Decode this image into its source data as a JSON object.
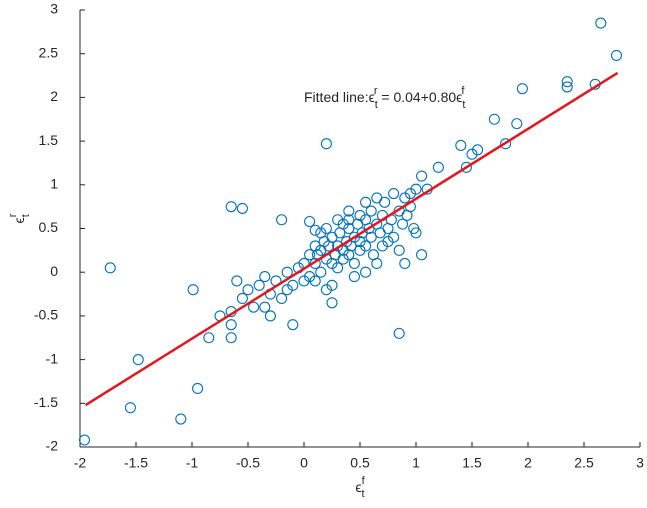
{
  "chart_data": {
    "type": "scatter",
    "xlabel": {
      "base": "ϵ",
      "sub": "t",
      "sup": "f"
    },
    "ylabel": {
      "base": "ϵ",
      "sub": "t",
      "sup": "r"
    },
    "annotation": [
      "Fitted line:ϵ",
      "t",
      "r",
      " = 0.04+0.80ϵ",
      "t",
      "f"
    ],
    "xlim": [
      -2,
      3
    ],
    "ylim": [
      -2,
      3
    ],
    "xticks": [
      -2,
      -1.5,
      -1,
      -0.5,
      0,
      0.5,
      1,
      1.5,
      2,
      2.5,
      3
    ],
    "yticks": [
      -2,
      -1.5,
      -1,
      -0.5,
      0,
      0.5,
      1,
      1.5,
      2,
      2.5,
      3
    ],
    "series": [
      {
        "color": "#0072bd",
        "x": [
          -1.96,
          -1.73,
          -1.48,
          -1.55,
          -1.1,
          -0.95,
          -0.99,
          -0.65,
          -0.55,
          0.2,
          0.85,
          2.65,
          2.79,
          2.6,
          2.35,
          2.35,
          1.95,
          1.7,
          1.9,
          1.8,
          1.4,
          1.5,
          1.55,
          1.45,
          1.2,
          1.05,
          1.1,
          -0.85,
          -0.65,
          -0.65,
          -0.35,
          -0.1,
          0.25,
          0.1,
          0.05,
          -0.2,
          1.05,
          1.0,
          -0.75,
          -0.6,
          -0.55,
          -0.5,
          -0.45,
          -0.4,
          -0.35,
          -0.3,
          -0.25,
          -0.2,
          -0.15,
          -0.1,
          -0.05,
          0.0,
          0.0,
          0.05,
          0.05,
          0.1,
          0.1,
          0.12,
          0.15,
          0.15,
          0.18,
          0.2,
          0.2,
          0.22,
          0.25,
          0.25,
          0.28,
          0.3,
          0.3,
          0.32,
          0.35,
          0.35,
          0.38,
          0.4,
          0.4,
          0.42,
          0.45,
          0.45,
          0.48,
          0.5,
          0.5,
          0.52,
          0.55,
          0.55,
          0.58,
          0.6,
          0.6,
          0.62,
          0.65,
          0.68,
          0.7,
          0.7,
          0.72,
          0.75,
          0.78,
          0.8,
          0.8,
          0.85,
          0.88,
          0.9,
          0.92,
          0.95,
          0.98,
          1.0,
          0.4,
          0.3,
          0.2,
          0.35,
          0.25,
          0.45,
          0.55,
          0.65,
          0.15,
          0.1,
          -0.65,
          -0.3,
          -0.15,
          0.85,
          0.9,
          0.75,
          0.55,
          0.65,
          0.95,
          0.4,
          0.5
        ],
        "values": [
          -1.92,
          0.05,
          -1.0,
          -1.55,
          -1.68,
          -1.33,
          -0.2,
          0.75,
          0.73,
          1.47,
          -0.7,
          2.85,
          2.48,
          2.15,
          2.18,
          2.12,
          2.1,
          1.75,
          1.7,
          1.47,
          1.45,
          1.35,
          1.4,
          1.2,
          1.2,
          1.1,
          0.95,
          -0.75,
          -0.6,
          -0.75,
          -0.4,
          -0.6,
          -0.35,
          0.48,
          0.58,
          0.6,
          0.2,
          0.45,
          -0.5,
          -0.1,
          -0.3,
          -0.2,
          -0.4,
          -0.15,
          -0.05,
          -0.25,
          -0.1,
          -0.3,
          0.0,
          -0.15,
          0.05,
          0.1,
          -0.1,
          0.2,
          -0.05,
          0.1,
          0.3,
          0.2,
          0.0,
          0.25,
          0.35,
          0.15,
          -0.2,
          0.3,
          0.1,
          0.4,
          0.2,
          0.3,
          0.05,
          0.45,
          0.25,
          0.15,
          0.35,
          0.5,
          0.2,
          0.3,
          0.4,
          0.1,
          0.55,
          0.35,
          0.25,
          0.45,
          0.6,
          0.3,
          0.5,
          0.4,
          0.7,
          0.2,
          0.55,
          0.45,
          0.65,
          0.3,
          0.8,
          0.5,
          0.6,
          0.9,
          0.4,
          0.7,
          0.55,
          0.85,
          0.65,
          0.75,
          0.5,
          0.95,
          0.7,
          0.6,
          0.5,
          0.55,
          -0.15,
          -0.05,
          0.0,
          0.1,
          0.45,
          -0.1,
          -0.45,
          -0.5,
          -0.2,
          0.25,
          0.1,
          0.35,
          0.8,
          0.85,
          0.9,
          0.6,
          0.65
        ]
      },
      {
        "type": "line",
        "color": "#e8141b",
        "x": [
          -1.95,
          2.8
        ],
        "values": [
          -1.52,
          2.28
        ]
      }
    ]
  }
}
